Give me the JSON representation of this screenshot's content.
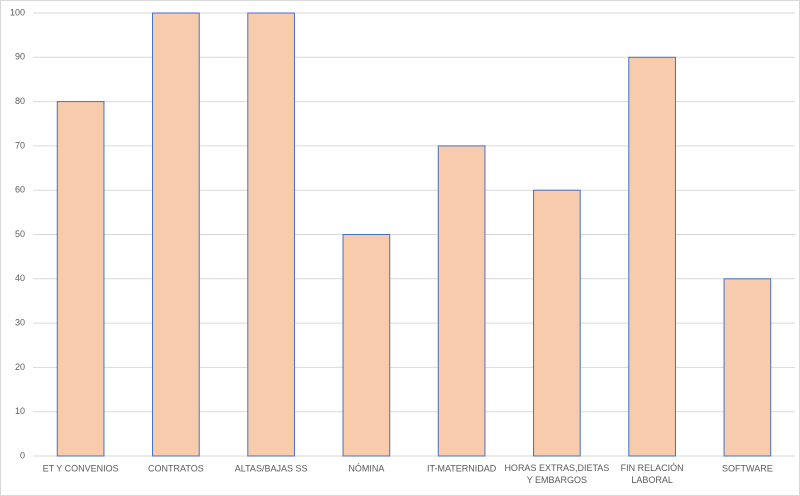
{
  "chart_data": {
    "type": "bar",
    "categories": [
      "ET Y CONVENIOS",
      "CONTRATOS",
      "ALTAS/BAJAS SS",
      "NÓMINA",
      "IT-MATERNIDAD",
      "HORAS EXTRAS,DIETAS\nY EMBARGOS",
      "FIN RELACIÓN\nLABORAL",
      "SOFTWARE"
    ],
    "values": [
      80,
      100,
      100,
      50,
      70,
      60,
      90,
      40
    ],
    "color": "#f8cbad",
    "edge_color": "#4472c4",
    "ylim": [
      0,
      100
    ],
    "yticks": [
      0,
      10,
      20,
      30,
      40,
      50,
      60,
      70,
      80,
      90,
      100
    ],
    "grid": true
  }
}
